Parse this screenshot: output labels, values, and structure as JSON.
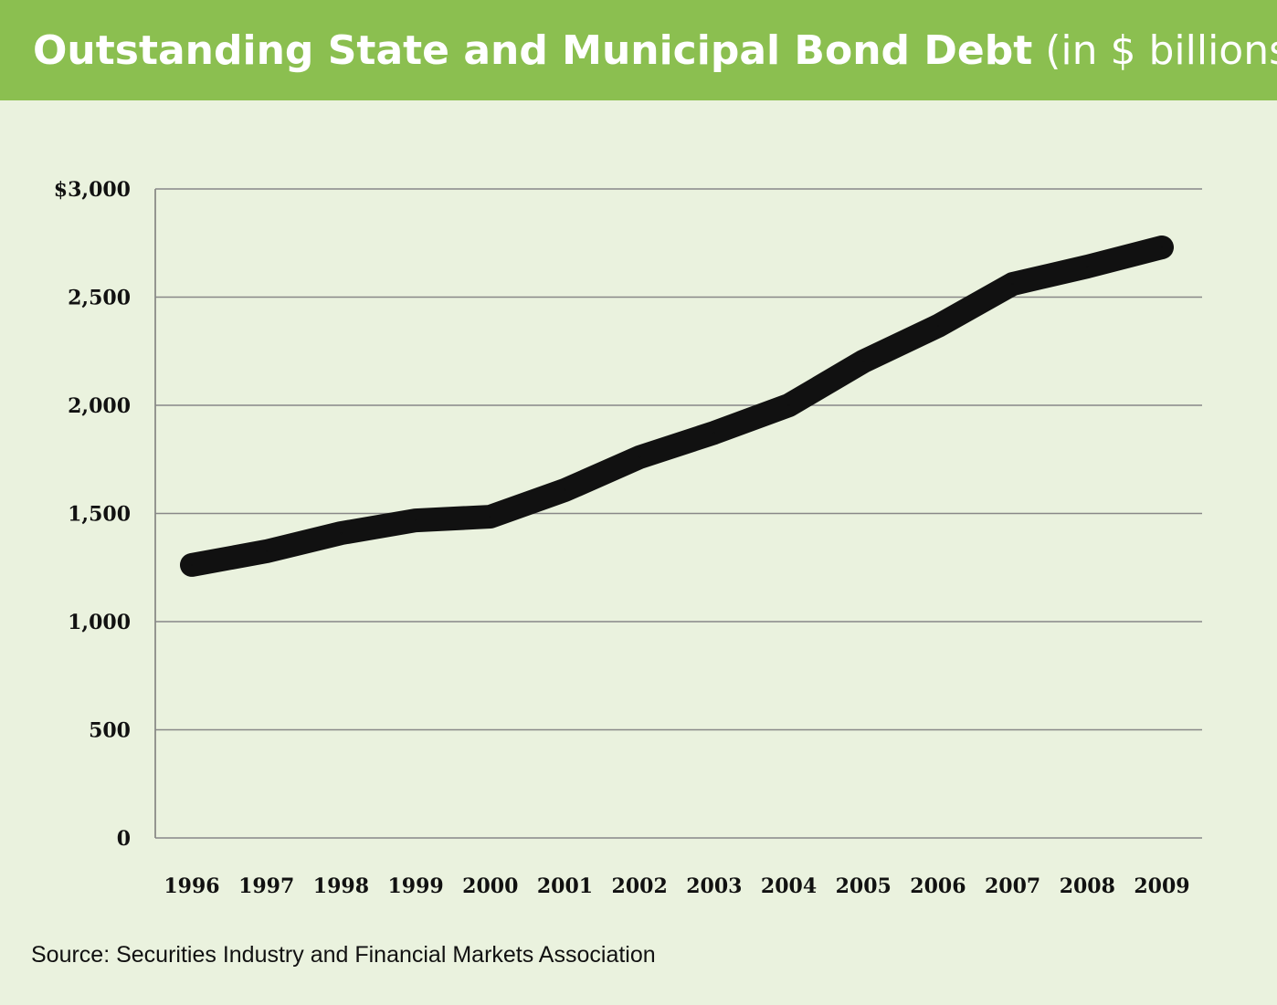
{
  "chart_data": {
    "type": "line",
    "title": "Outstanding State and Municipal Bond Debt",
    "subtitle": "(in $ billions)",
    "x": [
      "1996",
      "1997",
      "1998",
      "1999",
      "2000",
      "2001",
      "2002",
      "2003",
      "2004",
      "2005",
      "2006",
      "2007",
      "2008",
      "2009"
    ],
    "series": [
      {
        "values": [
          1262,
          1325,
          1409,
          1468,
          1485,
          1608,
          1760,
          1873,
          2000,
          2203,
          2367,
          2561,
          2641,
          2730
        ]
      }
    ],
    "ylim": [
      0,
      3000
    ],
    "yticks": [
      0,
      500,
      1000,
      1500,
      2000,
      2500,
      3000
    ],
    "ytick_labels": [
      "0",
      "500",
      "1,000",
      "1,500",
      "2,000",
      "2,500",
      "$3,000"
    ],
    "grid": true,
    "line_color": "#111111",
    "header_color": "#8bbf50",
    "background_color": "#eaf2de",
    "source": "Source: Securities Industry and Financial Markets Association"
  }
}
